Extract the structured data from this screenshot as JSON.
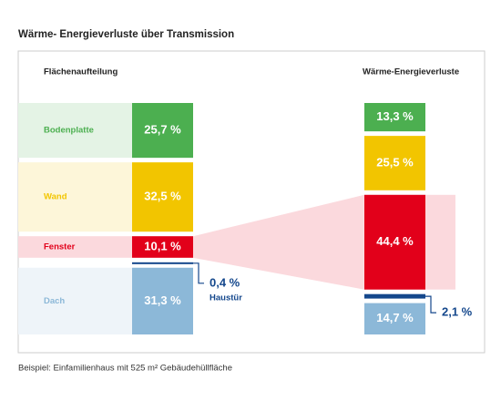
{
  "chart_data": {
    "type": "bar",
    "title": "Wärme- Energieverluste über Transmission",
    "footnote": "Beispiel: Einfamilienhaus mit 525 m² Gebäudehüllfläche",
    "categories": [
      "Bodenplatte",
      "Wand",
      "Fenster",
      "Haustür",
      "Dach"
    ],
    "colors": [
      "#4caf50",
      "#f2c500",
      "#e2001a",
      "#14478c",
      "#8cb8d8"
    ],
    "series": [
      {
        "name": "Flächenaufteilung",
        "values": [
          25.7,
          32.5,
          10.1,
          0.4,
          31.3
        ],
        "value_labels": [
          "25,7 %",
          "32,5 %",
          "10,1 %",
          "0,4 %",
          "31,3 %"
        ]
      },
      {
        "name": "Wärme-Energieverluste",
        "values": [
          13.3,
          25.5,
          44.4,
          2.1,
          14.7
        ],
        "value_labels": [
          "13,3 %",
          "25,5 %",
          "44,4 %",
          "2,1 %",
          "14,7 %"
        ]
      }
    ]
  }
}
